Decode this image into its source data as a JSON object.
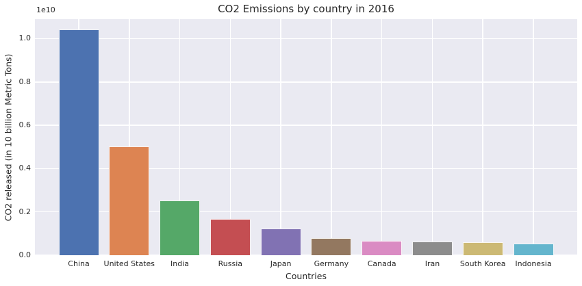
{
  "figure": {
    "background": "#ffffff"
  },
  "chart_data": {
    "type": "bar",
    "title": "CO2 Emissions by country in 2016",
    "xlabel": "Countries",
    "ylabel": "CO2 released (in 10 billion Metric Tons)",
    "y_offset_label": "1e10",
    "categories": [
      "China",
      "United States",
      "India",
      "Russia",
      "Japan",
      "Germany",
      "Canada",
      "Iran",
      "South Korea",
      "Indonesia"
    ],
    "values": [
      10433000000,
      5012000000,
      2534000000,
      1662000000,
      1240000000,
      776000000,
      676000000,
      643000000,
      604000000,
      530000000
    ],
    "bar_colors": [
      "#4c72b0",
      "#dd8452",
      "#55a868",
      "#c44e52",
      "#8172b3",
      "#937860",
      "#da8bc3",
      "#8c8c8c",
      "#ccb974",
      "#64b5cd"
    ],
    "ytick_labels": [
      "0.0",
      "0.2",
      "0.4",
      "0.6",
      "0.8",
      "1.0"
    ],
    "ytick_values": [
      0,
      2000000000,
      4000000000,
      6000000000,
      8000000000,
      10000000000
    ],
    "ylim": [
      0,
      10900000000
    ],
    "grid": true,
    "legend_position": "none",
    "plot_bg_color": "#eaeaf2",
    "grid_color": "#ffffff",
    "text_color": "#262626"
  }
}
